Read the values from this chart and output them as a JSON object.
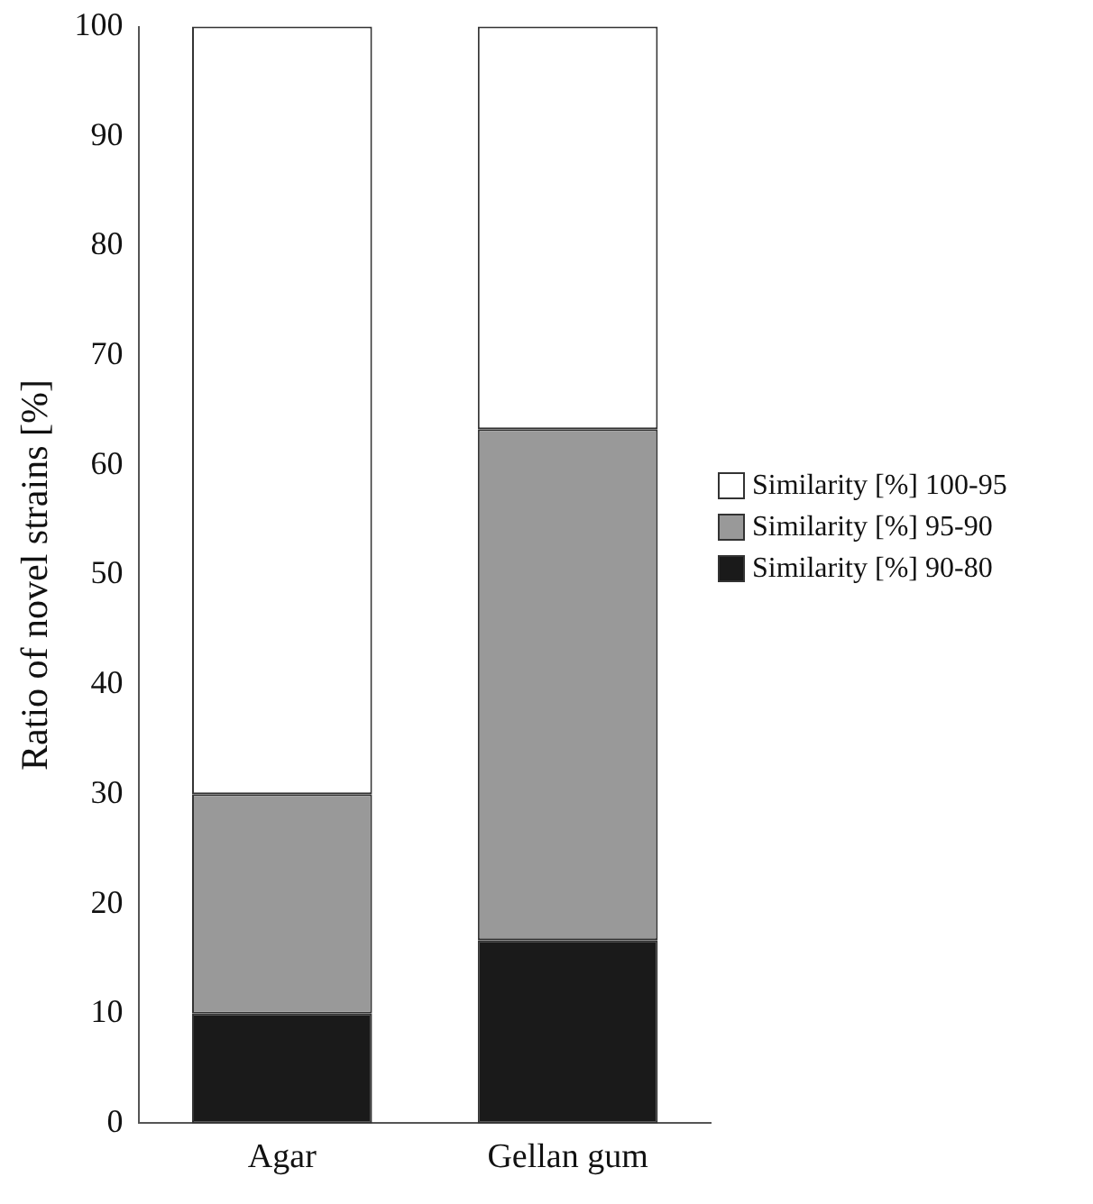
{
  "chart_data": {
    "type": "bar",
    "ylabel": "Ratio of novel strains [%]",
    "categories": [
      "Agar",
      "Gellan gum"
    ],
    "stacked": true,
    "series": [
      {
        "name": "Similarity [%] 90-80",
        "color": "#1a1a1a",
        "values": [
          10,
          16.7
        ]
      },
      {
        "name": "Similarity [%] 95-90",
        "color": "#999999",
        "values": [
          20,
          46.6
        ]
      },
      {
        "name": "Similarity [%] 100-95",
        "color": "#ffffff",
        "values": [
          70,
          36.7
        ]
      }
    ],
    "ylim": [
      0,
      100
    ],
    "yticks": [
      0,
      10,
      20,
      30,
      40,
      50,
      60,
      70,
      80,
      90,
      100
    ],
    "grid": false,
    "legend": "right"
  }
}
